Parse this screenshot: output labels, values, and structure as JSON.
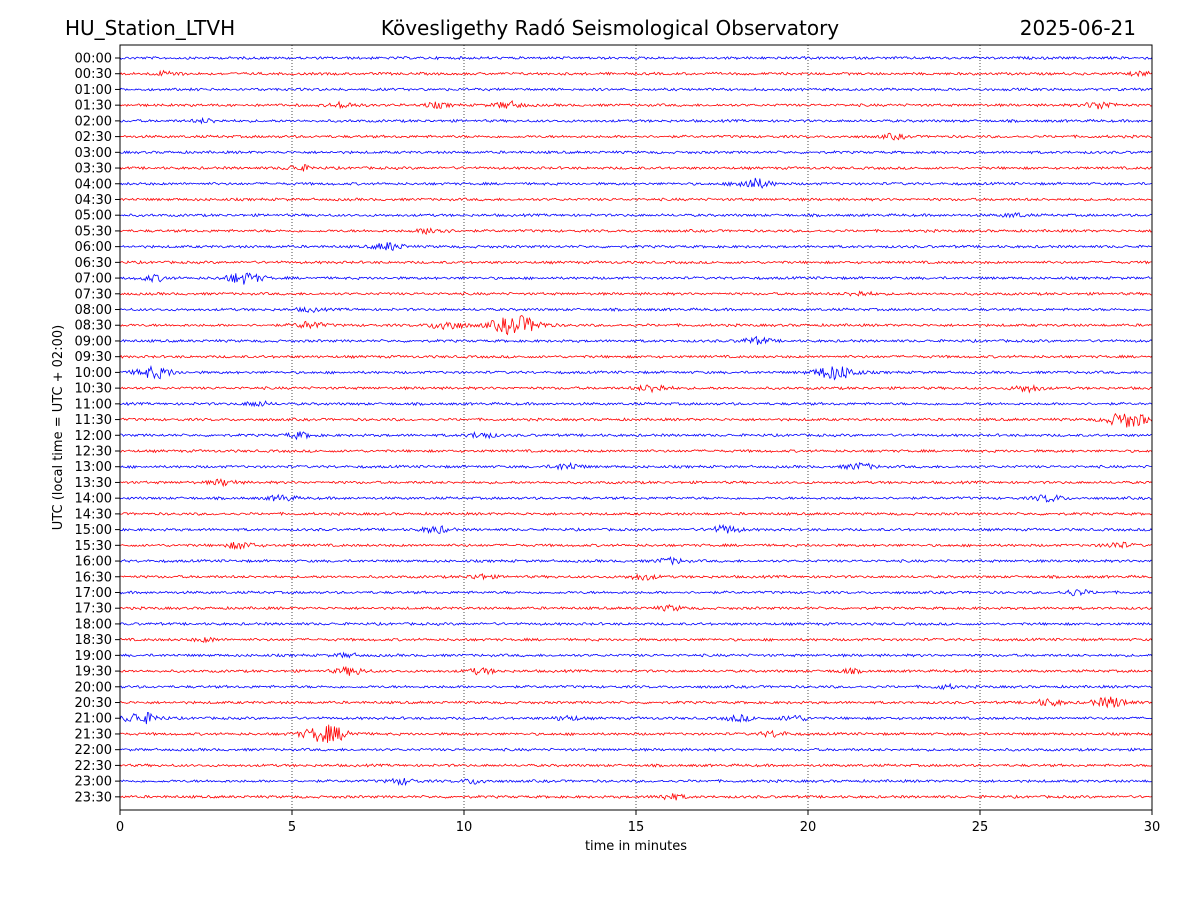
{
  "header": {
    "station": "HU_Station_LTVH",
    "observatory": "Kövesligethy Radó Seismological Observatory",
    "date": "2025-06-21"
  },
  "chart_data": {
    "type": "line",
    "title": "Kövesligethy Radó Seismological Observatory",
    "xlabel": "time in minutes",
    "ylabel": "UTC (local time = UTC + 02:00)",
    "xlim": [
      0,
      30
    ],
    "x_ticks": [
      "0",
      "5",
      "10",
      "15",
      "20",
      "25",
      "30"
    ],
    "grid": "vertical dotted at each x tick",
    "trace_colors": [
      "#0000ff",
      "#ff0000"
    ],
    "rows": [
      {
        "label": "00:00",
        "events": []
      },
      {
        "label": "00:30",
        "events": [
          {
            "t": 1.4,
            "amp": 0.25
          },
          {
            "t": 29.7,
            "amp": 0.2
          }
        ]
      },
      {
        "label": "01:00",
        "events": []
      },
      {
        "label": "01:30",
        "events": [
          {
            "t": 6.5,
            "amp": 0.3
          },
          {
            "t": 9.2,
            "amp": 0.25
          },
          {
            "t": 11.3,
            "amp": 0.35
          },
          {
            "t": 28.5,
            "amp": 0.4
          }
        ]
      },
      {
        "label": "02:00",
        "events": [
          {
            "t": 2.5,
            "amp": 0.2
          }
        ]
      },
      {
        "label": "02:30",
        "events": [
          {
            "t": 22.5,
            "amp": 0.25
          }
        ]
      },
      {
        "label": "03:00",
        "events": []
      },
      {
        "label": "03:30",
        "events": [
          {
            "t": 5.2,
            "amp": 0.3
          }
        ]
      },
      {
        "label": "04:00",
        "events": [
          {
            "t": 18.4,
            "amp": 0.55
          }
        ]
      },
      {
        "label": "04:30",
        "events": []
      },
      {
        "label": "05:00",
        "events": [
          {
            "t": 26.0,
            "amp": 0.2
          }
        ]
      },
      {
        "label": "05:30",
        "events": [
          {
            "t": 9.1,
            "amp": 0.35
          }
        ]
      },
      {
        "label": "06:00",
        "events": [
          {
            "t": 7.8,
            "amp": 0.4
          }
        ]
      },
      {
        "label": "06:30",
        "events": []
      },
      {
        "label": "07:00",
        "events": [
          {
            "t": 3.6,
            "amp": 0.6
          },
          {
            "t": 1.0,
            "amp": 0.3
          }
        ]
      },
      {
        "label": "07:30",
        "events": [
          {
            "t": 21.5,
            "amp": 0.25
          }
        ]
      },
      {
        "label": "08:00",
        "events": [
          {
            "t": 5.5,
            "amp": 0.2
          }
        ]
      },
      {
        "label": "08:30",
        "events": [
          {
            "t": 11.5,
            "amp": 1.0
          },
          {
            "t": 9.5,
            "amp": 0.5
          },
          {
            "t": 5.5,
            "amp": 0.35
          }
        ]
      },
      {
        "label": "09:00",
        "events": [
          {
            "t": 18.5,
            "amp": 0.35
          }
        ]
      },
      {
        "label": "09:30",
        "events": []
      },
      {
        "label": "10:00",
        "events": [
          {
            "t": 1.0,
            "amp": 0.6
          },
          {
            "t": 20.8,
            "amp": 0.75
          }
        ]
      },
      {
        "label": "10:30",
        "events": [
          {
            "t": 15.5,
            "amp": 0.4
          },
          {
            "t": 26.4,
            "amp": 0.35
          }
        ]
      },
      {
        "label": "11:00",
        "events": [
          {
            "t": 4.0,
            "amp": 0.25
          }
        ]
      },
      {
        "label": "11:30",
        "events": [
          {
            "t": 29.3,
            "amp": 0.8
          }
        ]
      },
      {
        "label": "12:00",
        "events": [
          {
            "t": 5.2,
            "amp": 0.3
          },
          {
            "t": 10.5,
            "amp": 0.3
          }
        ]
      },
      {
        "label": "12:30",
        "events": []
      },
      {
        "label": "13:00",
        "events": [
          {
            "t": 13.0,
            "amp": 0.35
          },
          {
            "t": 21.5,
            "amp": 0.35
          }
        ]
      },
      {
        "label": "13:30",
        "events": [
          {
            "t": 3.0,
            "amp": 0.3
          }
        ]
      },
      {
        "label": "14:00",
        "events": [
          {
            "t": 27.0,
            "amp": 0.35
          },
          {
            "t": 4.7,
            "amp": 0.3
          }
        ]
      },
      {
        "label": "14:30",
        "events": []
      },
      {
        "label": "15:00",
        "events": [
          {
            "t": 9.2,
            "amp": 0.35
          },
          {
            "t": 17.6,
            "amp": 0.4
          }
        ]
      },
      {
        "label": "15:30",
        "events": [
          {
            "t": 3.5,
            "amp": 0.35
          },
          {
            "t": 29.0,
            "amp": 0.3
          }
        ]
      },
      {
        "label": "16:00",
        "events": [
          {
            "t": 16.0,
            "amp": 0.3
          }
        ]
      },
      {
        "label": "16:30",
        "events": [
          {
            "t": 15.2,
            "amp": 0.3
          },
          {
            "t": 10.5,
            "amp": 0.25
          }
        ]
      },
      {
        "label": "17:00",
        "events": [
          {
            "t": 27.8,
            "amp": 0.3
          }
        ]
      },
      {
        "label": "17:30",
        "events": [
          {
            "t": 16.0,
            "amp": 0.25
          }
        ]
      },
      {
        "label": "18:00",
        "events": []
      },
      {
        "label": "18:30",
        "events": [
          {
            "t": 2.5,
            "amp": 0.2
          }
        ]
      },
      {
        "label": "19:00",
        "events": [
          {
            "t": 6.6,
            "amp": 0.2
          }
        ]
      },
      {
        "label": "19:30",
        "events": [
          {
            "t": 6.7,
            "amp": 0.4
          },
          {
            "t": 10.5,
            "amp": 0.3
          },
          {
            "t": 21.2,
            "amp": 0.2
          }
        ]
      },
      {
        "label": "20:00",
        "events": [
          {
            "t": 24.0,
            "amp": 0.2
          }
        ]
      },
      {
        "label": "20:30",
        "events": [
          {
            "t": 28.8,
            "amp": 0.55
          },
          {
            "t": 27.0,
            "amp": 0.35
          }
        ]
      },
      {
        "label": "21:00",
        "events": [
          {
            "t": 0.6,
            "amp": 0.6
          },
          {
            "t": 18.0,
            "amp": 0.3
          },
          {
            "t": 19.6,
            "amp": 0.3
          },
          {
            "t": 13.0,
            "amp": 0.25
          }
        ]
      },
      {
        "label": "21:30",
        "events": [
          {
            "t": 6.0,
            "amp": 0.9
          },
          {
            "t": 19.0,
            "amp": 0.3
          }
        ]
      },
      {
        "label": "22:00",
        "events": []
      },
      {
        "label": "22:30",
        "events": []
      },
      {
        "label": "23:00",
        "events": [
          {
            "t": 8.2,
            "amp": 0.3
          },
          {
            "t": 10.3,
            "amp": 0.25
          }
        ]
      },
      {
        "label": "23:30",
        "events": [
          {
            "t": 16.0,
            "amp": 0.3
          }
        ]
      }
    ]
  }
}
